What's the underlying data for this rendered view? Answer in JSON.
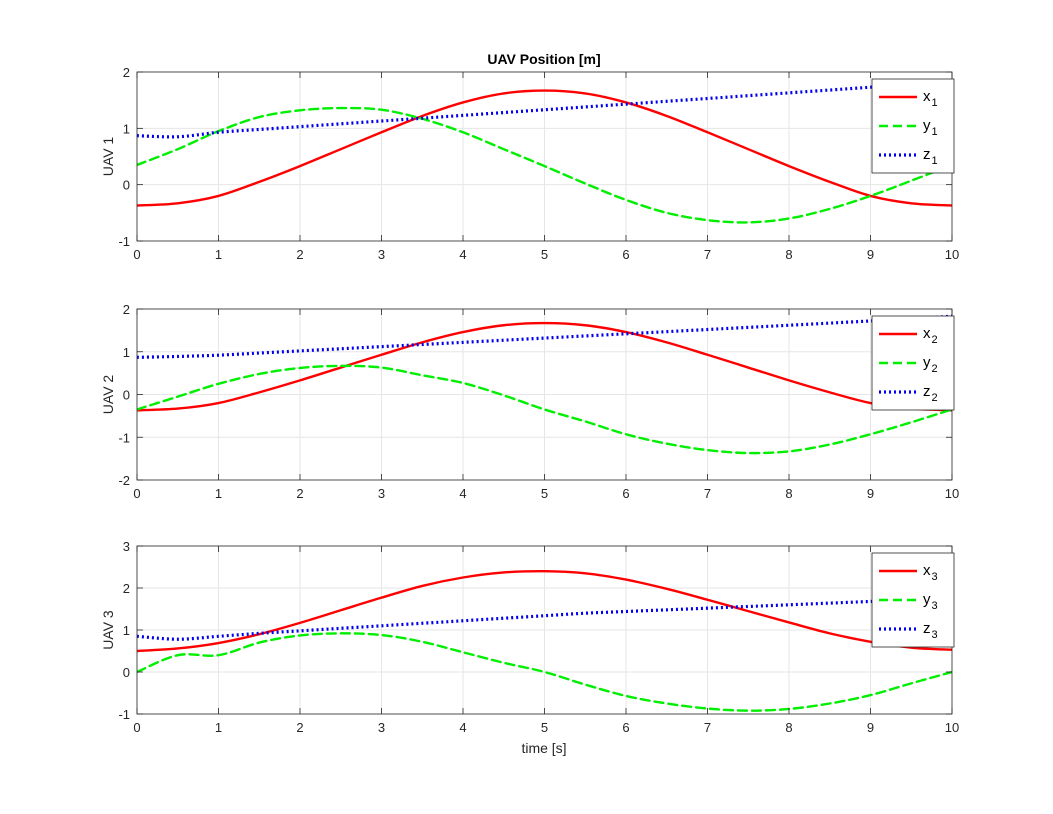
{
  "figure": {
    "title": "UAV Position [m]",
    "xlabel": "time [s]"
  },
  "chart_data": [
    {
      "type": "line",
      "ylabel": "UAV 1",
      "xlim": [
        0,
        10
      ],
      "ylim": [
        -1,
        2
      ],
      "xticks": [
        0,
        1,
        2,
        3,
        4,
        5,
        6,
        7,
        8,
        9,
        10
      ],
      "yticks": [
        -1,
        0,
        1,
        2
      ],
      "grid": true,
      "legend_placement": "top-right",
      "x": [
        0,
        0.5,
        1,
        1.5,
        2,
        2.5,
        3,
        3.5,
        4,
        4.5,
        5,
        5.5,
        6,
        6.5,
        7,
        7.5,
        8,
        8.5,
        9,
        9.5,
        10
      ],
      "series": [
        {
          "name": "x",
          "sub": "1",
          "color": "#ff0000",
          "dash": "solid",
          "values": [
            -0.37,
            -0.33,
            -0.2,
            0.05,
            0.33,
            0.63,
            0.93,
            1.22,
            1.46,
            1.62,
            1.67,
            1.62,
            1.46,
            1.22,
            0.93,
            0.63,
            0.33,
            0.05,
            -0.2,
            -0.33,
            -0.37
          ]
        },
        {
          "name": "y",
          "sub": "1",
          "color": "#00ee00",
          "dash": "dashed",
          "values": [
            0.35,
            0.63,
            0.95,
            1.2,
            1.32,
            1.36,
            1.33,
            1.17,
            0.93,
            0.63,
            0.33,
            0.02,
            -0.27,
            -0.5,
            -0.63,
            -0.67,
            -0.6,
            -0.43,
            -0.2,
            0.07,
            0.35
          ]
        },
        {
          "name": "z",
          "sub": "1",
          "color": "#0000ee",
          "dash": "dotted",
          "values": [
            0.87,
            0.85,
            0.93,
            0.98,
            1.03,
            1.08,
            1.13,
            1.18,
            1.23,
            1.28,
            1.33,
            1.38,
            1.43,
            1.48,
            1.53,
            1.58,
            1.63,
            1.68,
            1.73,
            1.78,
            1.83
          ]
        }
      ]
    },
    {
      "type": "line",
      "ylabel": "UAV 2",
      "xlim": [
        0,
        10
      ],
      "ylim": [
        -2,
        2
      ],
      "xticks": [
        0,
        1,
        2,
        3,
        4,
        5,
        6,
        7,
        8,
        9,
        10
      ],
      "yticks": [
        -2,
        -1,
        0,
        1,
        2
      ],
      "grid": true,
      "legend_placement": "top-right",
      "x": [
        0,
        0.5,
        1,
        1.5,
        2,
        2.5,
        3,
        3.5,
        4,
        4.5,
        5,
        5.5,
        6,
        6.5,
        7,
        7.5,
        8,
        8.5,
        9,
        9.5,
        10
      ],
      "series": [
        {
          "name": "x",
          "sub": "2",
          "color": "#ff0000",
          "dash": "solid",
          "values": [
            -0.37,
            -0.33,
            -0.2,
            0.05,
            0.33,
            0.63,
            0.93,
            1.22,
            1.46,
            1.62,
            1.67,
            1.62,
            1.46,
            1.22,
            0.93,
            0.63,
            0.33,
            0.05,
            -0.2,
            -0.33,
            -0.37
          ]
        },
        {
          "name": "y",
          "sub": "2",
          "color": "#00ee00",
          "dash": "dashed",
          "values": [
            -0.35,
            -0.05,
            0.25,
            0.48,
            0.62,
            0.67,
            0.63,
            0.45,
            0.27,
            -0.02,
            -0.35,
            -0.63,
            -0.93,
            -1.15,
            -1.3,
            -1.37,
            -1.33,
            -1.17,
            -0.93,
            -0.65,
            -0.35
          ]
        },
        {
          "name": "z",
          "sub": "2",
          "color": "#0000ee",
          "dash": "dotted",
          "values": [
            0.87,
            0.89,
            0.92,
            0.97,
            1.02,
            1.07,
            1.12,
            1.17,
            1.22,
            1.27,
            1.32,
            1.37,
            1.42,
            1.47,
            1.52,
            1.57,
            1.62,
            1.67,
            1.72,
            1.77,
            1.83
          ]
        }
      ]
    },
    {
      "type": "line",
      "ylabel": "UAV 3",
      "xlim": [
        0,
        10
      ],
      "ylim": [
        -1,
        3
      ],
      "xticks": [
        0,
        1,
        2,
        3,
        4,
        5,
        6,
        7,
        8,
        9,
        10
      ],
      "yticks": [
        -1,
        0,
        1,
        2,
        3
      ],
      "grid": true,
      "legend_placement": "top-right",
      "x": [
        0,
        0.5,
        1,
        1.5,
        2,
        2.5,
        3,
        3.5,
        4,
        4.5,
        5,
        5.5,
        6,
        6.5,
        7,
        7.5,
        8,
        8.5,
        9,
        9.5,
        10
      ],
      "series": [
        {
          "name": "x",
          "sub": "3",
          "color": "#ff0000",
          "dash": "solid",
          "values": [
            0.5,
            0.56,
            0.69,
            0.9,
            1.17,
            1.47,
            1.77,
            2.05,
            2.25,
            2.37,
            2.4,
            2.35,
            2.2,
            1.98,
            1.72,
            1.45,
            1.18,
            0.92,
            0.72,
            0.58,
            0.53
          ]
        },
        {
          "name": "y",
          "sub": "3",
          "color": "#00ee00",
          "dash": "dashed",
          "values": [
            0.0,
            0.4,
            0.4,
            0.7,
            0.87,
            0.92,
            0.88,
            0.72,
            0.47,
            0.22,
            0.0,
            -0.3,
            -0.57,
            -0.75,
            -0.87,
            -0.92,
            -0.88,
            -0.75,
            -0.55,
            -0.27,
            0.0
          ]
        },
        {
          "name": "z",
          "sub": "3",
          "color": "#0000ee",
          "dash": "dotted",
          "values": [
            0.85,
            0.78,
            0.85,
            0.92,
            0.98,
            1.04,
            1.1,
            1.16,
            1.22,
            1.28,
            1.34,
            1.4,
            1.44,
            1.48,
            1.52,
            1.56,
            1.6,
            1.64,
            1.68,
            1.72,
            1.77
          ]
        }
      ]
    }
  ]
}
